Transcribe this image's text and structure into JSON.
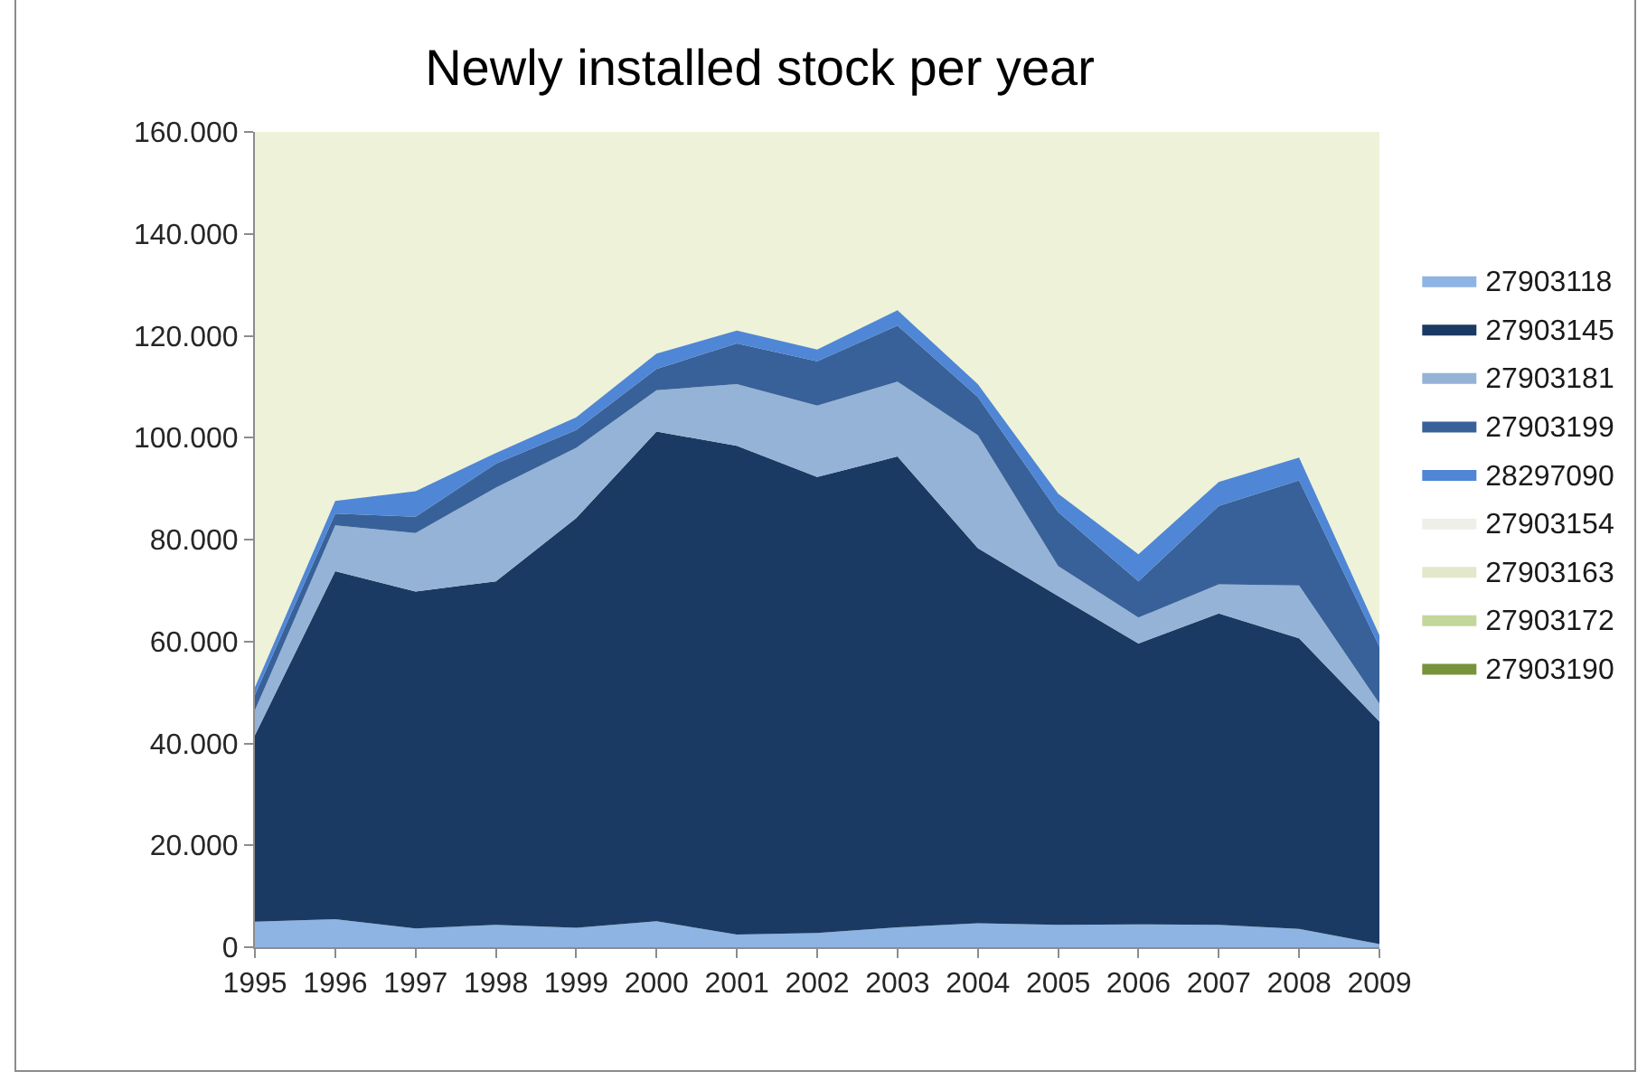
{
  "chart_data": {
    "type": "area",
    "title": "Newly installed stock per year",
    "stacked": true,
    "legend": "right",
    "x": [
      1995,
      1996,
      1997,
      1998,
      1999,
      2000,
      2001,
      2002,
      2003,
      2004,
      2005,
      2006,
      2007,
      2008,
      2009
    ],
    "xlim": [
      1995,
      2009
    ],
    "xticks": [
      1995,
      1996,
      1997,
      1998,
      1999,
      2000,
      2001,
      2002,
      2003,
      2004,
      2005,
      2006,
      2007,
      2008,
      2009
    ],
    "ylim": [
      0,
      160000
    ],
    "yticks": [
      0,
      {
        "value": 20000,
        "label": "20.000"
      },
      {
        "value": 40000,
        "label": "40.000"
      },
      {
        "value": 60000,
        "label": "60.000"
      },
      {
        "value": 80000,
        "label": "80.000"
      },
      {
        "value": 100000,
        "label": "100.000"
      },
      {
        "value": 120000,
        "label": "120.000"
      },
      {
        "value": 140000,
        "label": "140.000"
      },
      {
        "value": 160000,
        "label": "160.000"
      }
    ],
    "series": [
      {
        "name": "27903118",
        "color": "#8db4e3",
        "values": [
          5000,
          5500,
          3700,
          4400,
          3800,
          5100,
          2500,
          2800,
          3900,
          4700,
          4400,
          4500,
          4400,
          3600,
          600
        ]
      },
      {
        "name": "27903145",
        "color": "#1b3a63",
        "values": [
          36600,
          68300,
          66100,
          67400,
          80400,
          96100,
          95900,
          89500,
          92400,
          73600,
          64500,
          55100,
          61100,
          57000,
          43700
        ]
      },
      {
        "name": "27903181",
        "color": "#95b3d7",
        "values": [
          4900,
          9000,
          11500,
          18400,
          13800,
          8100,
          12100,
          14000,
          14700,
          22200,
          5900,
          5100,
          5700,
          10400,
          3500
        ]
      },
      {
        "name": "27903199",
        "color": "#38619a",
        "values": [
          3000,
          2300,
          3200,
          4700,
          3500,
          4200,
          8000,
          8700,
          11000,
          7500,
          10600,
          7100,
          15400,
          20600,
          11200
        ]
      },
      {
        "name": "28297090",
        "color": "#4f86d6",
        "values": [
          1500,
          2500,
          5000,
          2100,
          2500,
          3000,
          2500,
          2300,
          3000,
          2500,
          3600,
          5300,
          4700,
          4500,
          2200
        ]
      },
      {
        "name": "27903154",
        "color": "#eeefe9",
        "values": [
          null,
          null,
          null,
          null,
          null,
          null,
          null,
          null,
          null,
          null,
          null,
          null,
          null,
          null,
          null
        ]
      },
      {
        "name": "27903163",
        "color": "#e3e7cc",
        "values": [
          null,
          null,
          null,
          null,
          null,
          null,
          null,
          null,
          null,
          null,
          null,
          null,
          null,
          null,
          null
        ]
      },
      {
        "name": "27903172",
        "color": "#c3d69b",
        "values": [
          null,
          null,
          null,
          null,
          null,
          null,
          null,
          null,
          null,
          null,
          null,
          null,
          null,
          null,
          null
        ]
      },
      {
        "name": "27903190",
        "color": "#77933c",
        "values": [
          null,
          null,
          null,
          null,
          null,
          null,
          null,
          null,
          null,
          null,
          null,
          null,
          null,
          null,
          null
        ]
      }
    ]
  }
}
